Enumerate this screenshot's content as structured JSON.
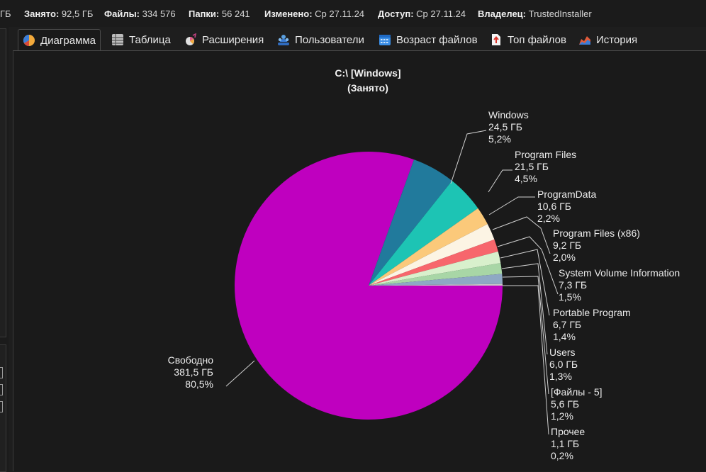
{
  "info_bar": {
    "cut_prefix": "ГБ",
    "used_label": "Занято:",
    "used_value": "92,5 ГБ",
    "files_label": "Файлы:",
    "files_value": "334 576",
    "folders_label": "Папки:",
    "folders_value": "56 241",
    "modified_label": "Изменено:",
    "modified_value": "Ср 27.11.24",
    "access_label": "Доступ:",
    "access_value": "Ср 27.11.24",
    "owner_label": "Владелец:",
    "owner_value": "TrustedInstaller"
  },
  "tabs": [
    {
      "label": "Диаграмма",
      "icon": "pie-chart-icon",
      "active": true
    },
    {
      "label": "Таблица",
      "icon": "table-icon"
    },
    {
      "label": "Расширения",
      "icon": "extensions-icon"
    },
    {
      "label": "Пользователи",
      "icon": "users-icon"
    },
    {
      "label": "Возраст файлов",
      "icon": "calendar-icon"
    },
    {
      "label": "Топ файлов",
      "icon": "top-files-icon"
    },
    {
      "label": "История",
      "icon": "history-icon"
    }
  ],
  "chart_data": {
    "type": "pie",
    "title": "C:\\    [Windows]",
    "subtitle": "(Занято)",
    "slices": [
      {
        "name": "Свободно",
        "size": "381,5 ГБ",
        "percent": "80,5%",
        "value": 80.5,
        "color": "#bf00bf"
      },
      {
        "name": "Windows",
        "size": "24,5 ГБ",
        "percent": "5,2%",
        "value": 5.2,
        "color": "#217a9c"
      },
      {
        "name": "Program Files",
        "size": "21,5 ГБ",
        "percent": "4,5%",
        "value": 4.5,
        "color": "#1dc4b4"
      },
      {
        "name": "ProgramData",
        "size": "10,6 ГБ",
        "percent": "2,2%",
        "value": 2.2,
        "color": "#fbc97a"
      },
      {
        "name": "Program Files (x86)",
        "size": "9,2 ГБ",
        "percent": "2,0%",
        "value": 2.0,
        "color": "#fcf4e4"
      },
      {
        "name": "System Volume Information",
        "size": "7,3 ГБ",
        "percent": "1,5%",
        "value": 1.5,
        "color": "#f7666c"
      },
      {
        "name": "Portable Program",
        "size": "6,7 ГБ",
        "percent": "1,4%",
        "value": 1.4,
        "color": "#d8f0cc"
      },
      {
        "name": "Users",
        "size": "6,0 ГБ",
        "percent": "1,3%",
        "value": 1.3,
        "color": "#a8d6a6"
      },
      {
        "name": "[Файлы - 5]",
        "size": "5,6 ГБ",
        "percent": "1,2%",
        "value": 1.2,
        "color": "#8ea8c4"
      },
      {
        "name": "Прочее",
        "size": "1,1 ГБ",
        "percent": "0,2%",
        "value": 0.2,
        "color": "#c8c8c8"
      }
    ]
  }
}
